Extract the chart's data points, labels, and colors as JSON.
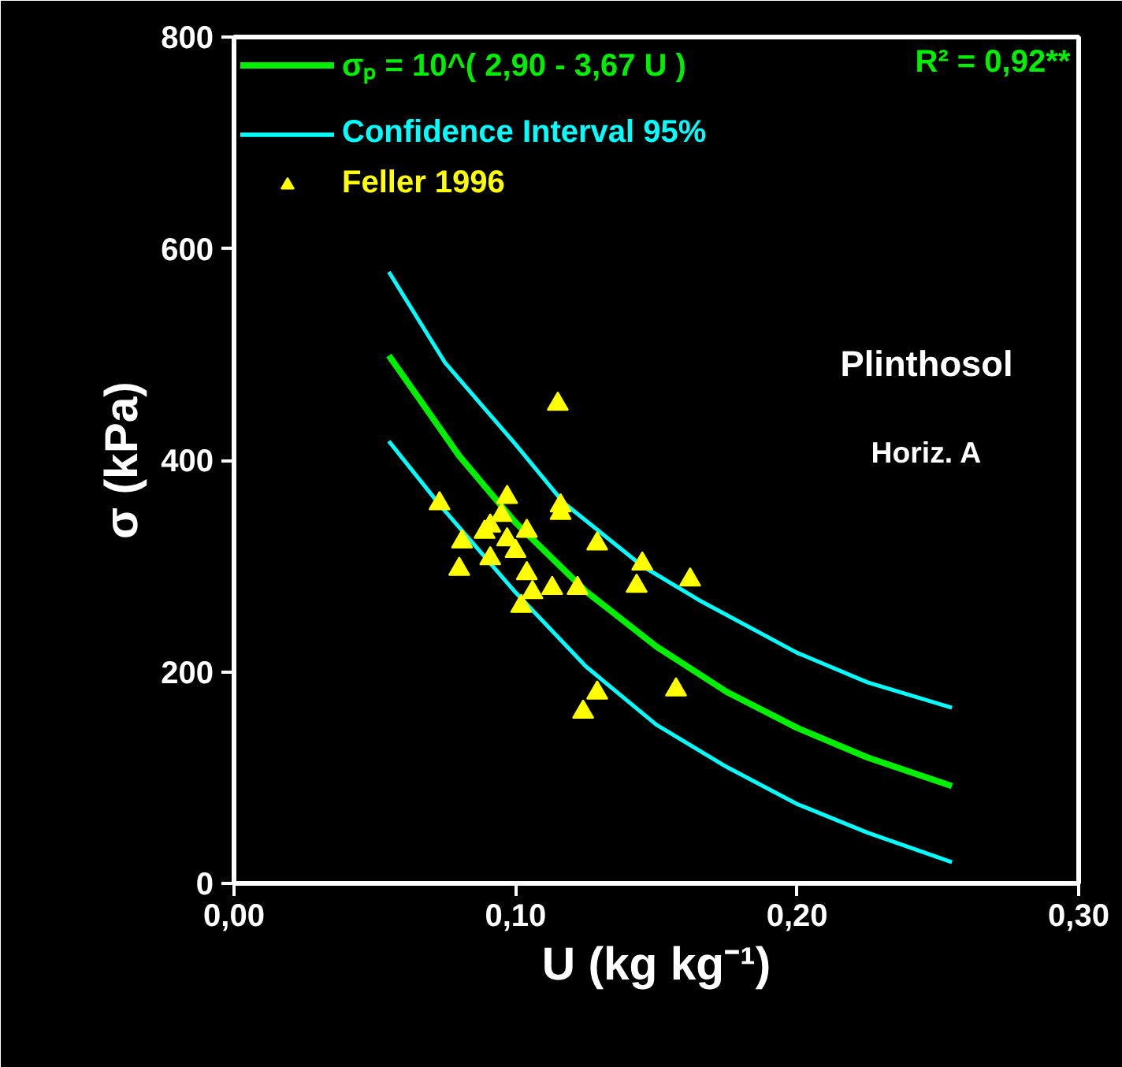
{
  "chart_data": {
    "type": "scatter",
    "xlabel": "U (kg kg⁻¹)",
    "ylabel": "σ (kPa)",
    "xlim": [
      0,
      0.3
    ],
    "ylim": [
      0,
      800
    ],
    "xticks": [
      {
        "value": 0,
        "label": "0,00"
      },
      {
        "value": 0.1,
        "label": "0,10"
      },
      {
        "value": 0.2,
        "label": "0,20"
      },
      {
        "value": 0.3,
        "label": "0,30"
      }
    ],
    "yticks": [
      0,
      200,
      400,
      600,
      800
    ],
    "grid": false,
    "legend": "top left",
    "annotations": [
      "R² = 0,92**",
      "Plinthosol",
      "Horiz. A"
    ],
    "series": [
      {
        "name": "σₚ = 10^( 2,90 - 3,67 U )",
        "type": "line",
        "color": "#00ee00",
        "x": [
          0.055,
          0.08,
          0.1,
          0.125,
          0.15,
          0.175,
          0.2,
          0.225,
          0.255
        ],
        "values": [
          499,
          404,
          341,
          276,
          224,
          181,
          147,
          119,
          92
        ]
      },
      {
        "name": "Confidence Interval 95%",
        "type": "line",
        "color": "#00ffff",
        "x": [
          0.055,
          0.075,
          0.1,
          0.117,
          0.145,
          0.165,
          0.2,
          0.225,
          0.255
        ],
        "values": [
          578,
          492,
          415,
          360,
          300,
          268,
          218,
          190,
          166
        ]
      },
      {
        "type": "line",
        "color": "#00ffff",
        "x": [
          0.055,
          0.073,
          0.1,
          0.125,
          0.15,
          0.175,
          0.2,
          0.225,
          0.255
        ],
        "values": [
          418,
          358,
          275,
          205,
          150,
          110,
          75,
          48,
          20
        ]
      },
      {
        "name": "Feller 1996",
        "marker": "triangle",
        "color": "#ffff00",
        "x": [
          0.073,
          0.097,
          0.115,
          0.116,
          0.116,
          0.095,
          0.091,
          0.089,
          0.081,
          0.097,
          0.104,
          0.1,
          0.091,
          0.129,
          0.08,
          0.104,
          0.145,
          0.162,
          0.143,
          0.113,
          0.122,
          0.106,
          0.102,
          0.129,
          0.157,
          0.124
        ],
        "values": [
          359,
          365,
          453,
          357,
          350,
          348,
          338,
          332,
          323,
          325,
          333,
          314,
          307,
          321,
          297,
          293,
          302,
          287,
          281,
          279,
          279,
          275,
          262,
          180,
          183,
          162
        ]
      }
    ]
  }
}
